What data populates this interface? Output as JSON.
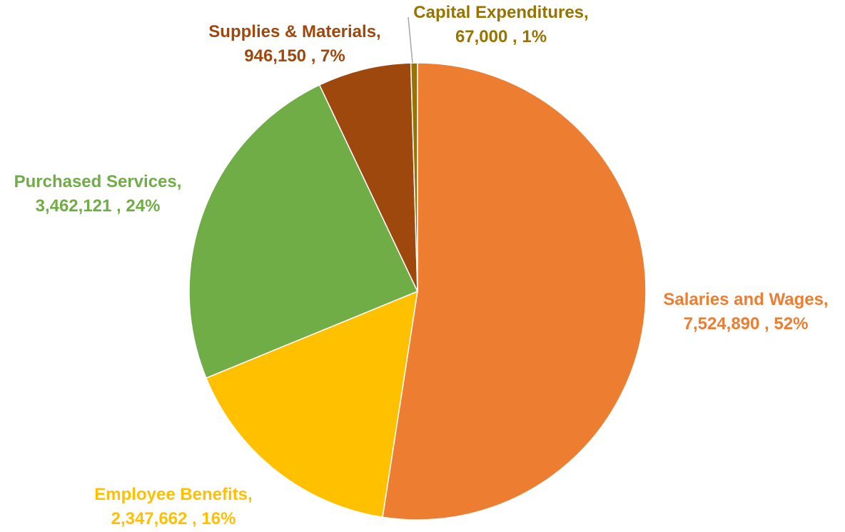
{
  "chart_data": {
    "type": "pie",
    "title": "",
    "start_angle_deg": 0,
    "direction": "clockwise",
    "legend": "none",
    "slices": [
      {
        "name": "Salaries and Wages",
        "value": 7524890,
        "value_label": "7,524,890",
        "percent_label": "52%",
        "color": "#ED7D31"
      },
      {
        "name": "Employee Benefits",
        "value": 2347662,
        "value_label": "2,347,662",
        "percent_label": "16%",
        "color": "#FFC000"
      },
      {
        "name": "Purchased Services",
        "value": 3462121,
        "value_label": "3,462,121",
        "percent_label": "24%",
        "color": "#70AD47"
      },
      {
        "name": "Supplies & Materials",
        "value": 946150,
        "value_label": "946,150",
        "percent_label": "7%",
        "color": "#9E480E"
      },
      {
        "name": "Capital Expenditures",
        "value": 67000,
        "value_label": "67,000",
        "percent_label": "1%",
        "color": "#997300"
      }
    ]
  }
}
